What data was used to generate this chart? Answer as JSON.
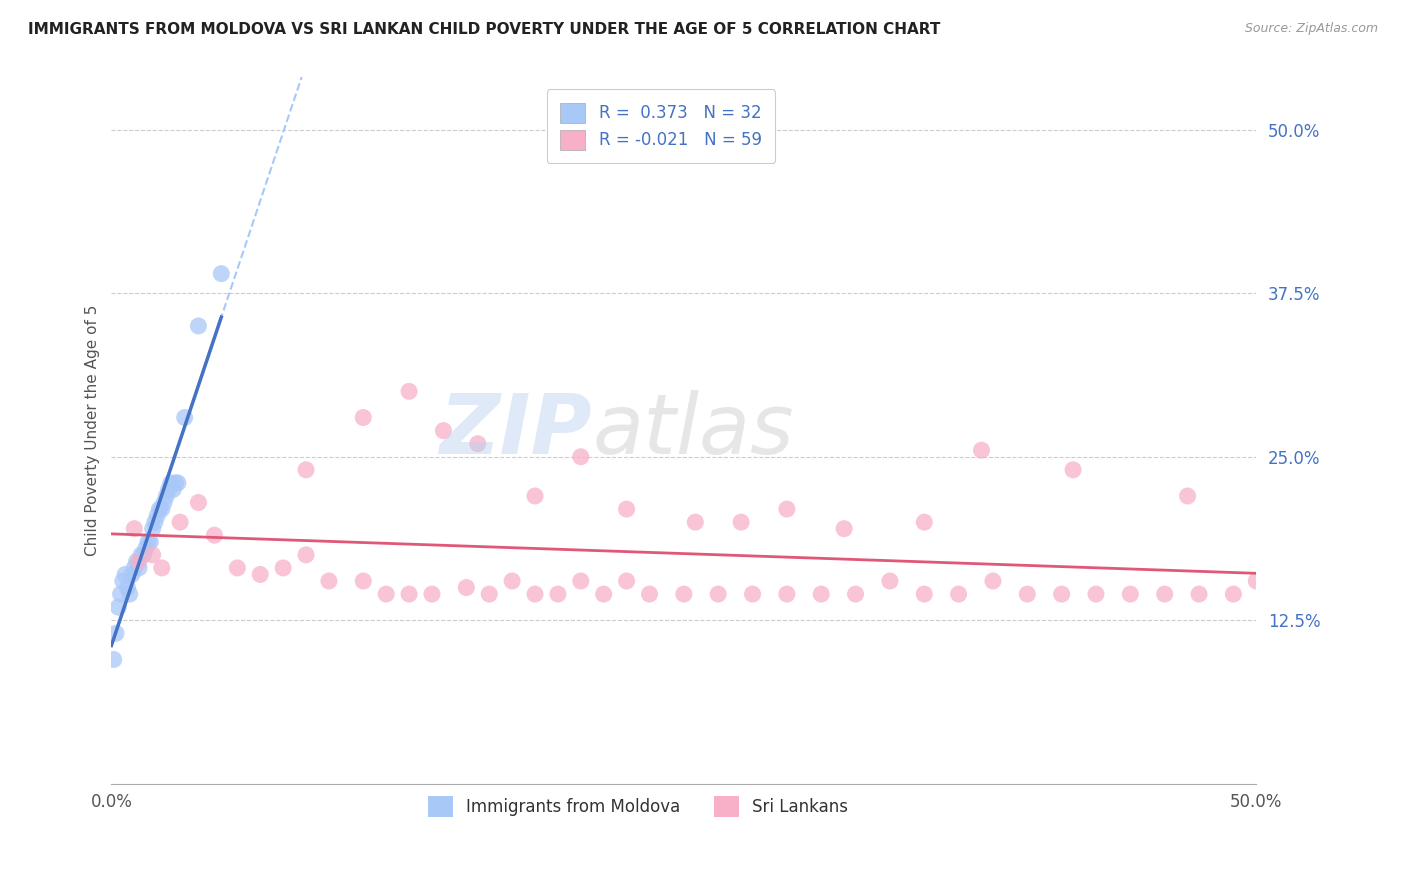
{
  "title": "IMMIGRANTS FROM MOLDOVA VS SRI LANKAN CHILD POVERTY UNDER THE AGE OF 5 CORRELATION CHART",
  "source": "Source: ZipAtlas.com",
  "ylabel": "Child Poverty Under the Age of 5",
  "xlim": [
    0.0,
    0.5
  ],
  "ylim": [
    0.0,
    0.54
  ],
  "ytick_labels": [
    "12.5%",
    "25.0%",
    "37.5%",
    "50.0%"
  ],
  "ytick_positions": [
    0.125,
    0.25,
    0.375,
    0.5
  ],
  "legend_label1": "Immigrants from Moldova",
  "legend_label2": "Sri Lankans",
  "r1": 0.373,
  "n1": 32,
  "r2": -0.021,
  "n2": 59,
  "color_moldova": "#a8c8f8",
  "color_srilanka": "#f8b0c8",
  "trendline_moldova_solid": "#4472c4",
  "trendline_moldova_dash": "#a8c8f8",
  "trendline_srilanka": "#e05878",
  "moldova_x": [
    0.001,
    0.002,
    0.003,
    0.004,
    0.005,
    0.006,
    0.007,
    0.008,
    0.009,
    0.01,
    0.011,
    0.012,
    0.013,
    0.014,
    0.015,
    0.016,
    0.017,
    0.018,
    0.019,
    0.02,
    0.021,
    0.022,
    0.023,
    0.024,
    0.025,
    0.026,
    0.027,
    0.028,
    0.029,
    0.032,
    0.038,
    0.048
  ],
  "moldova_y": [
    0.095,
    0.115,
    0.135,
    0.145,
    0.155,
    0.16,
    0.15,
    0.145,
    0.16,
    0.165,
    0.17,
    0.165,
    0.175,
    0.175,
    0.18,
    0.185,
    0.185,
    0.195,
    0.2,
    0.205,
    0.21,
    0.21,
    0.215,
    0.22,
    0.225,
    0.23,
    0.225,
    0.23,
    0.23,
    0.28,
    0.35,
    0.39
  ],
  "srilanka_x": [
    0.01,
    0.012,
    0.018,
    0.022,
    0.03,
    0.038,
    0.045,
    0.055,
    0.065,
    0.075,
    0.085,
    0.095,
    0.11,
    0.12,
    0.13,
    0.14,
    0.155,
    0.165,
    0.175,
    0.185,
    0.195,
    0.205,
    0.215,
    0.225,
    0.235,
    0.25,
    0.265,
    0.28,
    0.295,
    0.31,
    0.325,
    0.34,
    0.355,
    0.37,
    0.385,
    0.4,
    0.415,
    0.43,
    0.445,
    0.46,
    0.475,
    0.49,
    0.5,
    0.085,
    0.11,
    0.13,
    0.145,
    0.16,
    0.185,
    0.205,
    0.225,
    0.255,
    0.275,
    0.295,
    0.32,
    0.355,
    0.38,
    0.42,
    0.47
  ],
  "srilanka_y": [
    0.195,
    0.17,
    0.175,
    0.165,
    0.2,
    0.215,
    0.19,
    0.165,
    0.16,
    0.165,
    0.175,
    0.155,
    0.155,
    0.145,
    0.145,
    0.145,
    0.15,
    0.145,
    0.155,
    0.145,
    0.145,
    0.155,
    0.145,
    0.155,
    0.145,
    0.145,
    0.145,
    0.145,
    0.145,
    0.145,
    0.145,
    0.155,
    0.145,
    0.145,
    0.155,
    0.145,
    0.145,
    0.145,
    0.145,
    0.145,
    0.145,
    0.145,
    0.155,
    0.24,
    0.28,
    0.3,
    0.27,
    0.26,
    0.22,
    0.25,
    0.21,
    0.2,
    0.2,
    0.21,
    0.195,
    0.2,
    0.255,
    0.24,
    0.22
  ]
}
